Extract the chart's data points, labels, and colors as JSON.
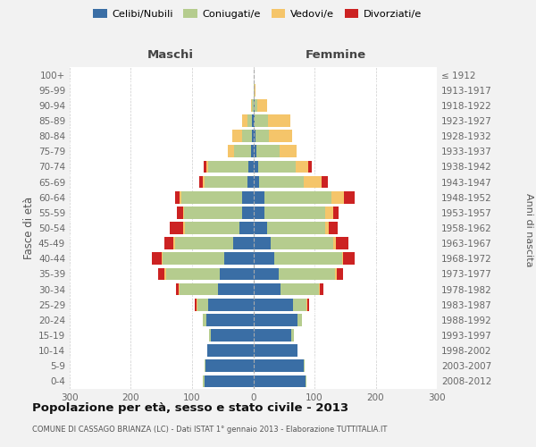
{
  "age_groups": [
    "0-4",
    "5-9",
    "10-14",
    "15-19",
    "20-24",
    "25-29",
    "30-34",
    "35-39",
    "40-44",
    "45-49",
    "50-54",
    "55-59",
    "60-64",
    "65-69",
    "70-74",
    "75-79",
    "80-84",
    "85-89",
    "90-94",
    "95-99",
    "100+"
  ],
  "birth_years": [
    "2008-2012",
    "2003-2007",
    "1998-2002",
    "1993-1997",
    "1988-1992",
    "1983-1987",
    "1978-1982",
    "1973-1977",
    "1968-1972",
    "1963-1967",
    "1958-1962",
    "1953-1957",
    "1948-1952",
    "1943-1947",
    "1938-1942",
    "1933-1937",
    "1928-1932",
    "1923-1927",
    "1918-1922",
    "1913-1917",
    "≤ 1912"
  ],
  "males_celibi": [
    80,
    78,
    75,
    70,
    77,
    73,
    58,
    55,
    48,
    33,
    22,
    18,
    18,
    10,
    8,
    3,
    2,
    2,
    0,
    0,
    0
  ],
  "males_coniugati": [
    2,
    2,
    0,
    2,
    5,
    18,
    62,
    88,
    100,
    95,
    90,
    95,
    100,
    70,
    65,
    28,
    16,
    8,
    2,
    0,
    0
  ],
  "males_vedovi": [
    0,
    0,
    0,
    0,
    0,
    2,
    2,
    2,
    2,
    2,
    2,
    2,
    2,
    3,
    3,
    10,
    16,
    8,
    2,
    0,
    0
  ],
  "males_divorziati": [
    0,
    0,
    0,
    0,
    0,
    3,
    5,
    10,
    15,
    15,
    22,
    10,
    8,
    5,
    5,
    0,
    0,
    0,
    0,
    0,
    0
  ],
  "females_nubili": [
    85,
    82,
    72,
    62,
    72,
    65,
    45,
    42,
    35,
    28,
    22,
    18,
    18,
    10,
    8,
    5,
    3,
    2,
    2,
    0,
    0
  ],
  "females_coniugate": [
    2,
    2,
    0,
    5,
    8,
    22,
    62,
    92,
    110,
    102,
    96,
    100,
    110,
    72,
    62,
    38,
    22,
    22,
    5,
    2,
    0
  ],
  "females_vedove": [
    0,
    0,
    0,
    0,
    0,
    2,
    2,
    2,
    2,
    5,
    5,
    12,
    20,
    30,
    20,
    28,
    38,
    36,
    15,
    2,
    0
  ],
  "females_divorziate": [
    0,
    0,
    0,
    0,
    0,
    2,
    5,
    10,
    18,
    20,
    15,
    10,
    18,
    10,
    5,
    0,
    0,
    0,
    0,
    0,
    0
  ],
  "color_celibi": "#3a6ea5",
  "color_coniugati": "#b5cc8e",
  "color_vedovi": "#f5c56a",
  "color_divorziati": "#cc2222",
  "xlim": 300,
  "title": "Popolazione per età, sesso e stato civile - 2013",
  "subtitle": "COMUNE DI CASSAGO BRIANZA (LC) - Dati ISTAT 1° gennaio 2013 - Elaborazione TUTTITALIA.IT",
  "ylabel_left": "Fasce di età",
  "ylabel_right": "Anni di nascita",
  "label_maschi": "Maschi",
  "label_femmine": "Femmine",
  "legend_labels": [
    "Celibi/Nubili",
    "Coniugati/e",
    "Vedovi/e",
    "Divorziati/e"
  ],
  "bg_color": "#f2f2f2",
  "plot_bg_color": "#ffffff",
  "grid_color": "#cccccc"
}
